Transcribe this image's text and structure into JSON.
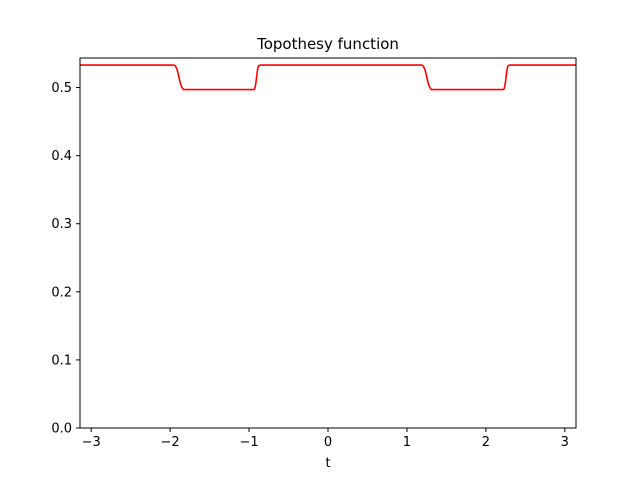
{
  "chart_data": {
    "type": "line",
    "title": "Topothesy function",
    "xlabel": "t",
    "ylabel": "",
    "xlim": [
      -3.1416,
      3.1416
    ],
    "ylim": [
      0.0,
      0.5434
    ],
    "xticks": [
      -3,
      -2,
      -1,
      0,
      1,
      2,
      3
    ],
    "xtick_labels": [
      "−3",
      "−2",
      "−1",
      "0",
      "1",
      "2",
      "3"
    ],
    "yticks": [
      0.0,
      0.1,
      0.2,
      0.3,
      0.4,
      0.5
    ],
    "ytick_labels": [
      "0.0",
      "0.1",
      "0.2",
      "0.3",
      "0.4",
      "0.5"
    ],
    "grid": false,
    "legend": "none",
    "series": [
      {
        "color": "#ff0000",
        "x": [
          -3.1416,
          -1.95,
          -1.93,
          -1.91,
          -1.89,
          -1.87,
          -1.85,
          -1.83,
          -1.8,
          -1.7,
          -0.94,
          -0.93,
          -0.92,
          -0.91,
          -0.9,
          -0.89,
          -0.88,
          -0.86,
          1.19,
          1.21,
          1.23,
          1.25,
          1.27,
          1.29,
          1.31,
          1.34,
          2.22,
          2.23,
          2.24,
          2.25,
          2.26,
          2.27,
          2.28,
          2.3,
          3.1416
        ],
        "y": [
          0.533,
          0.533,
          0.531,
          0.526,
          0.516,
          0.506,
          0.5,
          0.497,
          0.497,
          0.497,
          0.497,
          0.498,
          0.502,
          0.51,
          0.52,
          0.528,
          0.532,
          0.533,
          0.533,
          0.531,
          0.526,
          0.516,
          0.506,
          0.5,
          0.497,
          0.497,
          0.497,
          0.498,
          0.502,
          0.51,
          0.52,
          0.528,
          0.532,
          0.533,
          0.533
        ]
      }
    ]
  }
}
